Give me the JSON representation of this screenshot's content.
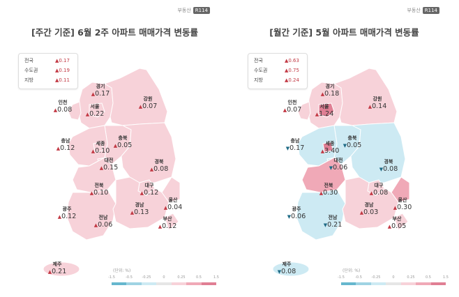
{
  "header": {
    "logo_text": "부동산",
    "logo_badge": "R114"
  },
  "colors": {
    "up_light": "#f7d2d9",
    "up_mid": "#f0a9b7",
    "up_strong": "#e07f94",
    "down_light": "#cdeaf3",
    "down_mid": "#9fd3e3",
    "down_strong": "#66b7ce",
    "neutral": "#e6e6e6",
    "up_arrow": "#c23a45",
    "down_arrow": "#1f6b86"
  },
  "panels": [
    {
      "title": "[주간 기준] 6월 2주 아파트 매매가격 변동률",
      "summary": [
        {
          "name": "전국",
          "dir": "up",
          "value": "0.17"
        },
        {
          "name": "수도권",
          "dir": "up",
          "value": "0.19"
        },
        {
          "name": "지방",
          "dir": "up",
          "value": "0.11"
        }
      ],
      "regions": [
        {
          "name": "경기",
          "dir": "up",
          "value": "0.17"
        },
        {
          "name": "강원",
          "dir": "up",
          "value": "0.07"
        },
        {
          "name": "인천",
          "dir": "up",
          "value": "0.08"
        },
        {
          "name": "서울",
          "dir": "up",
          "value": "0.22"
        },
        {
          "name": "충북",
          "dir": "up",
          "value": "0.05"
        },
        {
          "name": "충남",
          "dir": "up",
          "value": "0.12"
        },
        {
          "name": "세종",
          "dir": "up",
          "value": "0.10"
        },
        {
          "name": "대전",
          "dir": "up",
          "value": "0.15"
        },
        {
          "name": "경북",
          "dir": "up",
          "value": "0.08"
        },
        {
          "name": "전북",
          "dir": "up",
          "value": "0.10"
        },
        {
          "name": "대구",
          "dir": "up",
          "value": "0.12"
        },
        {
          "name": "울산",
          "dir": "up",
          "value": "0.04"
        },
        {
          "name": "광주",
          "dir": "up",
          "value": "0.12"
        },
        {
          "name": "전남",
          "dir": "up",
          "value": "0.06"
        },
        {
          "name": "경남",
          "dir": "up",
          "value": "0.13"
        },
        {
          "name": "부산",
          "dir": "up",
          "value": "0.12"
        },
        {
          "name": "제주",
          "dir": "up",
          "value": "0.21"
        }
      ]
    },
    {
      "title": "[월간 기준] 5월 아파트 매매가격 변동률",
      "summary": [
        {
          "name": "전국",
          "dir": "up",
          "value": "0.63"
        },
        {
          "name": "수도권",
          "dir": "up",
          "value": "0.75"
        },
        {
          "name": "지방",
          "dir": "up",
          "value": "0.24"
        }
      ],
      "regions": [
        {
          "name": "경기",
          "dir": "up",
          "value": "0.18"
        },
        {
          "name": "강원",
          "dir": "up",
          "value": "0.14"
        },
        {
          "name": "인천",
          "dir": "up",
          "value": "0.07"
        },
        {
          "name": "서울",
          "dir": "up",
          "value": "1.24"
        },
        {
          "name": "충북",
          "dir": "down",
          "value": "0.05"
        },
        {
          "name": "충남",
          "dir": "down",
          "value": "0.17"
        },
        {
          "name": "세종",
          "dir": "up",
          "value": "3.40"
        },
        {
          "name": "대전",
          "dir": "down",
          "value": "0.06"
        },
        {
          "name": "경북",
          "dir": "down",
          "value": "0.08"
        },
        {
          "name": "전북",
          "dir": "up",
          "value": "0.30"
        },
        {
          "name": "대구",
          "dir": "up",
          "value": "0.08"
        },
        {
          "name": "울산",
          "dir": "up",
          "value": "0.30"
        },
        {
          "name": "광주",
          "dir": "down",
          "value": "0.06"
        },
        {
          "name": "전남",
          "dir": "down",
          "value": "0.21"
        },
        {
          "name": "경남",
          "dir": "up",
          "value": "0.03"
        },
        {
          "name": "부산",
          "dir": "up",
          "value": "0.05"
        },
        {
          "name": "제주",
          "dir": "down",
          "value": "0.08"
        }
      ]
    }
  ],
  "legend": {
    "unit": "(단위: %)",
    "ticks": [
      "-1.5",
      "-0.5",
      "-0.25",
      "0",
      "0.25",
      "0.5",
      "1.5"
    ]
  }
}
